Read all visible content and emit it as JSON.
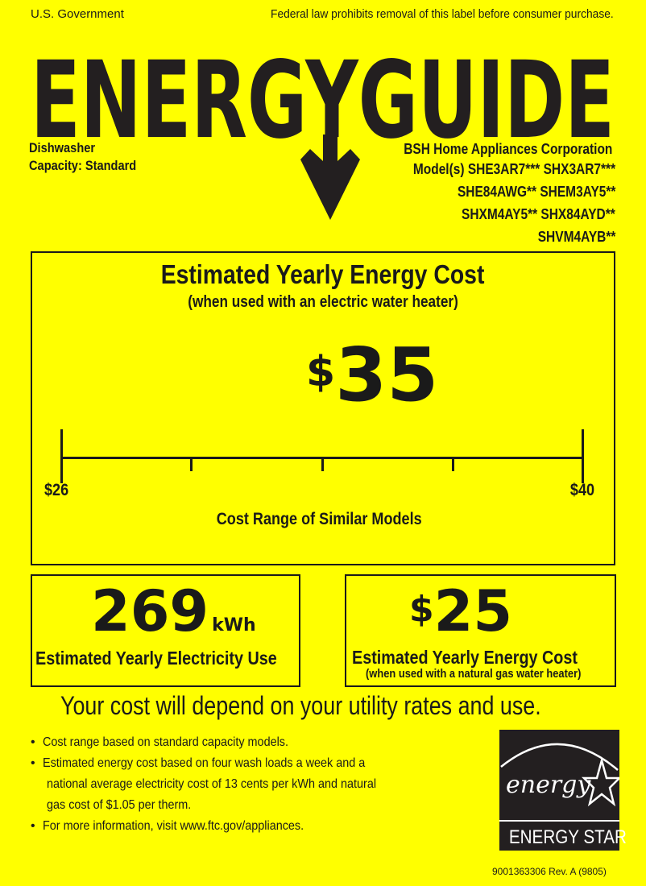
{
  "header": {
    "left": "U.S. Government",
    "right": "Federal law prohibits removal of this label before consumer purchase.",
    "logo_text": "ENERGYGUIDE"
  },
  "product": {
    "type": "Dishwasher",
    "capacity": "Capacity: Standard",
    "manufacturer": "BSH Home Appliances Corporation",
    "model_lines": [
      "Model(s) SHE3AR7*** SHX3AR7***",
      "SHE84AWG** SHEM3AY5**",
      "SHXM4AY5** SHX84AYD**",
      "SHVM4AYB**"
    ]
  },
  "main": {
    "title": "Estimated Yearly Energy Cost",
    "subtitle": "(when used with an electric water heater)",
    "currency": "$",
    "cost": "35",
    "range_min": "$26",
    "range_max": "$40",
    "range_label": "Cost Range of Similar Models",
    "range_values": {
      "min": 26,
      "max": 40,
      "value": 35
    }
  },
  "electricity": {
    "value": "269",
    "unit": "kWh",
    "label": "Estimated Yearly Electricity Use"
  },
  "gas": {
    "currency": "$",
    "value": "25",
    "label": "Estimated Yearly Energy Cost",
    "sublabel": "(when used with a natural gas water heater)"
  },
  "notice": "Your cost will depend on your utility rates and use.",
  "bullets": [
    "Cost range based on standard capacity models.",
    "Estimated energy cost based on four wash loads a week and a",
    "national average electricity cost of 13 cents per kWh and natural",
    "gas cost of $1.05 per therm.",
    "For more information, visit www.ftc.gov/appliances."
  ],
  "energy_star": {
    "script": "energy",
    "label": "ENERGY STAR"
  },
  "footer_code": "9001363306 Rev. A (9805)",
  "colors": {
    "background": "#ffff00",
    "ink": "#1a1a1a"
  }
}
